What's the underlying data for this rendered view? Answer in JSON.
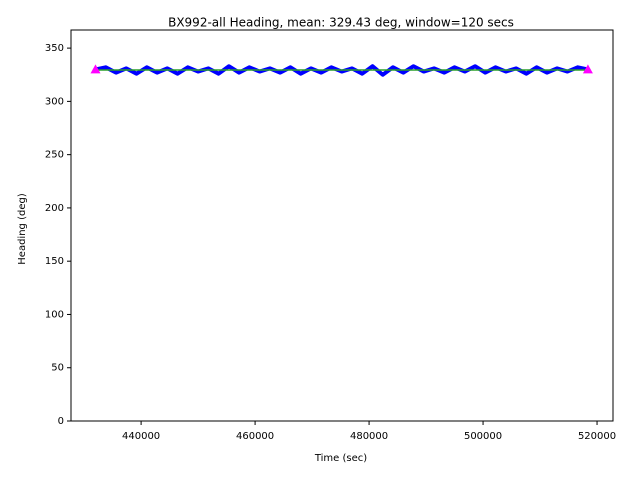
{
  "chart_data": {
    "type": "line",
    "title": "BX992-all Heading, mean: 329.43 deg, window=120 secs",
    "xlabel": "Time (sec)",
    "ylabel": "Heading (deg)",
    "xlim": [
      427700,
      522800
    ],
    "ylim": [
      0,
      367
    ],
    "xticks": [
      440000,
      460000,
      480000,
      500000,
      520000
    ],
    "yticks": [
      0,
      50,
      100,
      150,
      200,
      250,
      300,
      350
    ],
    "grid": false,
    "series": [
      {
        "color": "#0000ff",
        "marker": "none",
        "x": [
          432000,
          433800,
          435600,
          437400,
          439200,
          441000,
          442800,
          444600,
          446400,
          448200,
          450000,
          451800,
          453600,
          455400,
          457200,
          459000,
          460800,
          462600,
          464400,
          466200,
          468000,
          469800,
          471600,
          473400,
          475200,
          477000,
          478800,
          480600,
          482400,
          484200,
          486000,
          487800,
          489600,
          491400,
          493200,
          495000,
          496800,
          498600,
          500400,
          502200,
          504000,
          505800,
          507600,
          509400,
          511200,
          513000,
          514800,
          516600,
          518400
        ],
        "values": [
          330,
          332,
          327,
          331,
          326,
          332,
          327,
          331,
          326,
          332,
          328,
          331,
          326,
          333,
          327,
          332,
          328,
          331,
          327,
          332,
          326,
          331,
          327,
          332,
          328,
          331,
          326,
          333,
          325,
          332,
          327,
          333,
          328,
          331,
          327,
          332,
          328,
          333,
          327,
          332,
          328,
          331,
          326,
          332,
          327,
          331,
          328,
          332,
          330
        ]
      },
      {
        "color": "#2ca02c",
        "marker": "none",
        "x": [
          432000,
          518400
        ],
        "values": [
          329.43,
          329.43
        ]
      },
      {
        "color": "#ff00ff",
        "marker": "triangle",
        "x": [
          432000,
          518400
        ],
        "values": [
          330,
          330
        ]
      }
    ]
  }
}
